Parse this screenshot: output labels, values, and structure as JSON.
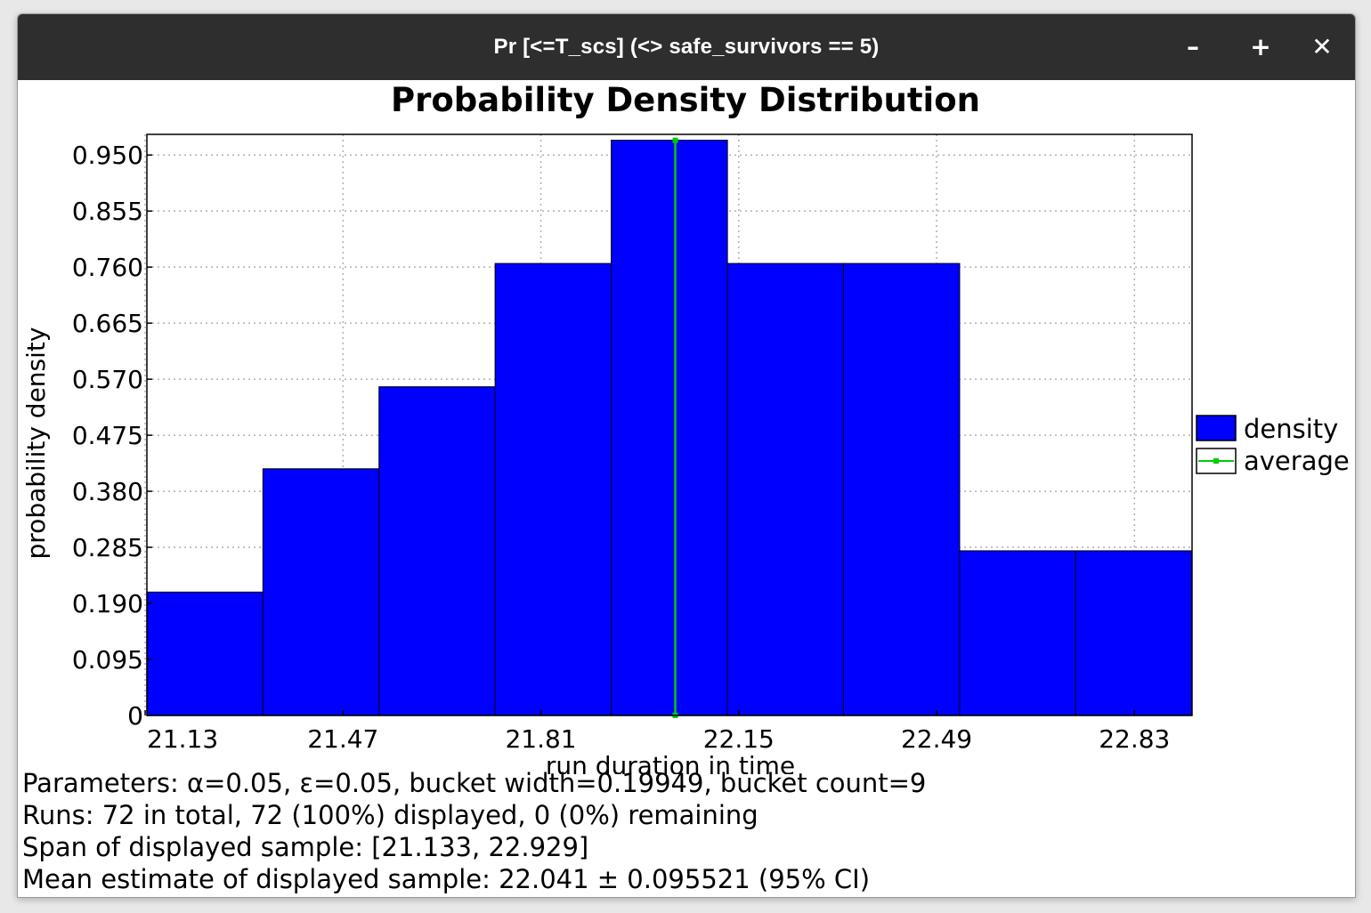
{
  "window": {
    "title": "Pr [<=T_scs] (<> safe_survivors == 5)",
    "minimize_icon": "minimize-icon",
    "maximize_icon": "maximize-icon",
    "close_icon": "close-icon",
    "minimize_glyph": "–",
    "maximize_glyph": "+",
    "close_glyph": "✕"
  },
  "chart_data": {
    "type": "bar",
    "title": "Probability Density Distribution",
    "xlabel": "run duration in time",
    "ylabel": "probability density",
    "xlim": [
      21.133,
      22.929
    ],
    "ylim": [
      0,
      0.985
    ],
    "grid": true,
    "legend_placement": "right",
    "xticks": [
      "21.13",
      "21.47",
      "21.81",
      "22.15",
      "22.49",
      "22.83"
    ],
    "yticks": [
      "0",
      "0.095",
      "0.190",
      "0.285",
      "0.380",
      "0.475",
      "0.570",
      "0.665",
      "0.760",
      "0.855",
      "0.950"
    ],
    "bucket_width": 0.19949,
    "bucket_count": 9,
    "series": [
      {
        "name": "density",
        "color": "#0000ff",
        "bin_starts": [
          21.133,
          21.3325,
          21.532,
          21.7315,
          21.931,
          22.1305,
          22.33,
          22.5295,
          22.729
        ],
        "values": [
          0.209,
          0.418,
          0.557,
          0.766,
          0.975,
          0.766,
          0.766,
          0.279,
          0.279
        ]
      },
      {
        "name": "average",
        "color": "#00cc00",
        "x": 22.041
      }
    ]
  },
  "info": {
    "parameters": "Parameters: α=0.05, ε=0.05, bucket width=0.19949, bucket count=9",
    "runs": "Runs: 72 in total, 72 (100%) displayed, 0 (0%) remaining",
    "span": "Span of displayed sample: [21.133, 22.929]",
    "mean": "Mean estimate of displayed sample: 22.041 ± 0.095521 (95% CI)"
  }
}
